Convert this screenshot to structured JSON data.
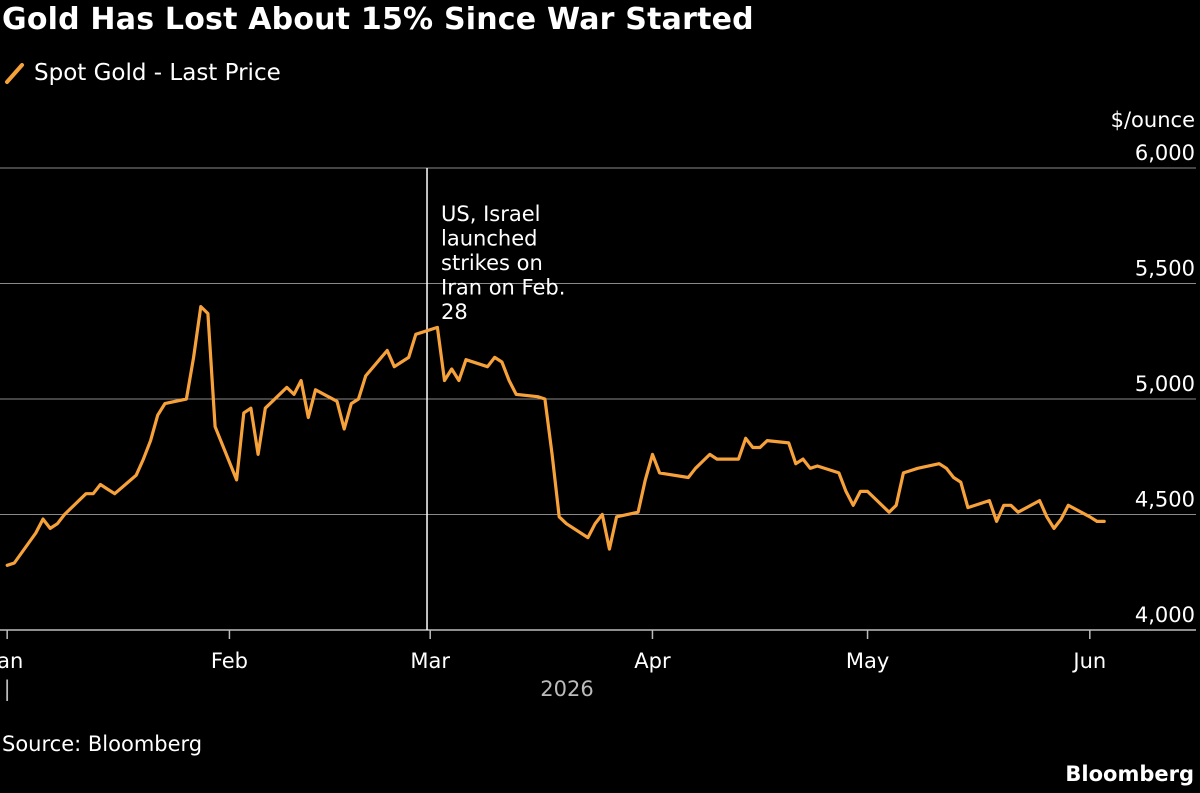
{
  "chart_data": {
    "type": "line",
    "title": "Gold Has Lost About 15% Since War Started",
    "series": [
      {
        "name": "Spot Gold - Last Price",
        "color": "#f6a13a",
        "points": [
          [
            "2026-01-01",
            4280
          ],
          [
            "2026-01-02",
            4290
          ],
          [
            "2026-01-05",
            4420
          ],
          [
            "2026-01-06",
            4480
          ],
          [
            "2026-01-07",
            4440
          ],
          [
            "2026-01-08",
            4460
          ],
          [
            "2026-01-09",
            4500
          ],
          [
            "2026-01-12",
            4590
          ],
          [
            "2026-01-13",
            4590
          ],
          [
            "2026-01-14",
            4630
          ],
          [
            "2026-01-15",
            4610
          ],
          [
            "2026-01-16",
            4590
          ],
          [
            "2026-01-19",
            4670
          ],
          [
            "2026-01-20",
            4740
          ],
          [
            "2026-01-21",
            4820
          ],
          [
            "2026-01-22",
            4930
          ],
          [
            "2026-01-23",
            4980
          ],
          [
            "2026-01-26",
            5000
          ],
          [
            "2026-01-27",
            5180
          ],
          [
            "2026-01-28",
            5400
          ],
          [
            "2026-01-29",
            5370
          ],
          [
            "2026-01-30",
            4880
          ],
          [
            "2026-02-02",
            4650
          ],
          [
            "2026-02-03",
            4940
          ],
          [
            "2026-02-04",
            4960
          ],
          [
            "2026-02-05",
            4760
          ],
          [
            "2026-02-06",
            4960
          ],
          [
            "2026-02-09",
            5050
          ],
          [
            "2026-02-10",
            5020
          ],
          [
            "2026-02-11",
            5080
          ],
          [
            "2026-02-12",
            4920
          ],
          [
            "2026-02-13",
            5040
          ],
          [
            "2026-02-16",
            4990
          ],
          [
            "2026-02-17",
            4870
          ],
          [
            "2026-02-18",
            4980
          ],
          [
            "2026-02-19",
            5000
          ],
          [
            "2026-02-20",
            5100
          ],
          [
            "2026-02-23",
            5210
          ],
          [
            "2026-02-24",
            5140
          ],
          [
            "2026-02-25",
            5160
          ],
          [
            "2026-02-26",
            5180
          ],
          [
            "2026-02-27",
            5280
          ],
          [
            "2026-03-02",
            5310
          ],
          [
            "2026-03-03",
            5080
          ],
          [
            "2026-03-04",
            5130
          ],
          [
            "2026-03-05",
            5080
          ],
          [
            "2026-03-06",
            5170
          ],
          [
            "2026-03-09",
            5140
          ],
          [
            "2026-03-10",
            5180
          ],
          [
            "2026-03-11",
            5160
          ],
          [
            "2026-03-12",
            5080
          ],
          [
            "2026-03-13",
            5020
          ],
          [
            "2026-03-16",
            5010
          ],
          [
            "2026-03-17",
            5000
          ],
          [
            "2026-03-18",
            4760
          ],
          [
            "2026-03-19",
            4490
          ],
          [
            "2026-03-20",
            4460
          ],
          [
            "2026-03-23",
            4400
          ],
          [
            "2026-03-24",
            4460
          ],
          [
            "2026-03-25",
            4500
          ],
          [
            "2026-03-26",
            4350
          ],
          [
            "2026-03-27",
            4490
          ],
          [
            "2026-03-30",
            4510
          ],
          [
            "2026-03-31",
            4650
          ],
          [
            "2026-04-01",
            4760
          ],
          [
            "2026-04-02",
            4680
          ],
          [
            "2026-04-06",
            4660
          ],
          [
            "2026-04-07",
            4700
          ],
          [
            "2026-04-08",
            4730
          ],
          [
            "2026-04-09",
            4760
          ],
          [
            "2026-04-10",
            4740
          ],
          [
            "2026-04-13",
            4740
          ],
          [
            "2026-04-14",
            4830
          ],
          [
            "2026-04-15",
            4790
          ],
          [
            "2026-04-16",
            4790
          ],
          [
            "2026-04-17",
            4820
          ],
          [
            "2026-04-20",
            4810
          ],
          [
            "2026-04-21",
            4720
          ],
          [
            "2026-04-22",
            4740
          ],
          [
            "2026-04-23",
            4700
          ],
          [
            "2026-04-24",
            4710
          ],
          [
            "2026-04-27",
            4680
          ],
          [
            "2026-04-28",
            4600
          ],
          [
            "2026-04-29",
            4540
          ],
          [
            "2026-04-30",
            4600
          ],
          [
            "2026-05-01",
            4600
          ],
          [
            "2026-05-04",
            4510
          ],
          [
            "2026-05-05",
            4540
          ],
          [
            "2026-05-06",
            4680
          ],
          [
            "2026-05-07",
            4690
          ],
          [
            "2026-05-08",
            4700
          ],
          [
            "2026-05-11",
            4720
          ],
          [
            "2026-05-12",
            4700
          ],
          [
            "2026-05-13",
            4660
          ],
          [
            "2026-05-14",
            4640
          ],
          [
            "2026-05-15",
            4530
          ],
          [
            "2026-05-18",
            4560
          ],
          [
            "2026-05-19",
            4470
          ],
          [
            "2026-05-20",
            4540
          ],
          [
            "2026-05-21",
            4540
          ],
          [
            "2026-05-22",
            4510
          ],
          [
            "2026-05-25",
            4560
          ],
          [
            "2026-05-26",
            4490
          ],
          [
            "2026-05-27",
            4440
          ],
          [
            "2026-05-28",
            4480
          ],
          [
            "2026-05-29",
            4540
          ],
          [
            "2026-06-01",
            4490
          ],
          [
            "2026-06-02",
            4470
          ],
          [
            "2026-06-03",
            4470
          ]
        ]
      }
    ],
    "xaxis": {
      "type": "date",
      "range": [
        "2025-12-31",
        "2026-06-08"
      ],
      "ticks": [
        {
          "date": "2026-01-01",
          "label": "Jan"
        },
        {
          "date": "2026-02-01",
          "label": "Feb"
        },
        {
          "date": "2026-03-01",
          "label": "Mar"
        },
        {
          "date": "2026-04-01",
          "label": "Apr"
        },
        {
          "date": "2026-05-01",
          "label": "May"
        },
        {
          "date": "2026-06-01",
          "label": "Jun"
        }
      ],
      "year_label": "2026",
      "year_marker": "|"
    },
    "yaxis": {
      "unit_label": "$/ounce",
      "range": [
        4000,
        6000
      ],
      "ticks": [
        {
          "value": 4000,
          "label": "4,000"
        },
        {
          "value": 4500,
          "label": "4,500"
        },
        {
          "value": 5000,
          "label": "5,000"
        },
        {
          "value": 5500,
          "label": "5,500"
        },
        {
          "value": 6000,
          "label": "6,000"
        }
      ],
      "position": "right",
      "grid": true
    },
    "annotations": [
      {
        "date": "2026-02-28",
        "lines": [
          "US, Israel",
          "launched",
          "strikes on",
          "Iran on Feb.",
          "28"
        ]
      }
    ],
    "legend_position": "top-left"
  },
  "footer": {
    "source": "Source: Bloomberg",
    "brand": "Bloomberg"
  }
}
